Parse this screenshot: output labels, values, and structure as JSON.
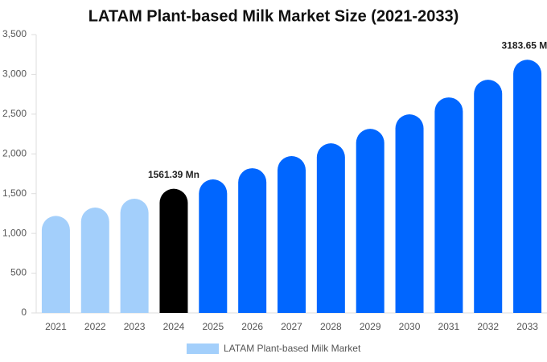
{
  "chart_data": {
    "type": "bar",
    "title": "LATAM Plant-based Milk Market Size (2021-2033)",
    "categories": [
      "2021",
      "2022",
      "2023",
      "2024",
      "2025",
      "2026",
      "2027",
      "2028",
      "2029",
      "2030",
      "2031",
      "2032",
      "2033"
    ],
    "series": [
      {
        "name": "LATAM Plant-based Milk Market",
        "color": "#a3cffb",
        "colors": [
          "#a3cffb",
          "#a3cffb",
          "#a3cffb",
          "#000000",
          "#0066ff",
          "#0066ff",
          "#0066ff",
          "#0066ff",
          "#0066ff",
          "#0066ff",
          "#0066ff",
          "#0066ff",
          "#0066ff"
        ],
        "values": [
          1220,
          1325,
          1436,
          1561.39,
          1679,
          1820,
          1972,
          2133,
          2315,
          2497,
          2710,
          2932,
          3183.65
        ],
        "value_labels": [
          null,
          null,
          null,
          "1561.39 Mn",
          null,
          null,
          null,
          null,
          null,
          null,
          null,
          null,
          "3183.65 Mn"
        ]
      }
    ],
    "ylim": [
      0,
      3500
    ],
    "yticks": [
      0,
      500,
      {
        "value": 1000,
        "label": "1,000"
      },
      {
        "value": 1500,
        "label": "1,500"
      },
      {
        "value": 2000,
        "label": "2,000"
      },
      {
        "value": 2500,
        "label": "2,500"
      },
      {
        "value": 3000,
        "label": "3,000"
      },
      {
        "value": 3500,
        "label": "3,500"
      }
    ],
    "grid": false
  }
}
